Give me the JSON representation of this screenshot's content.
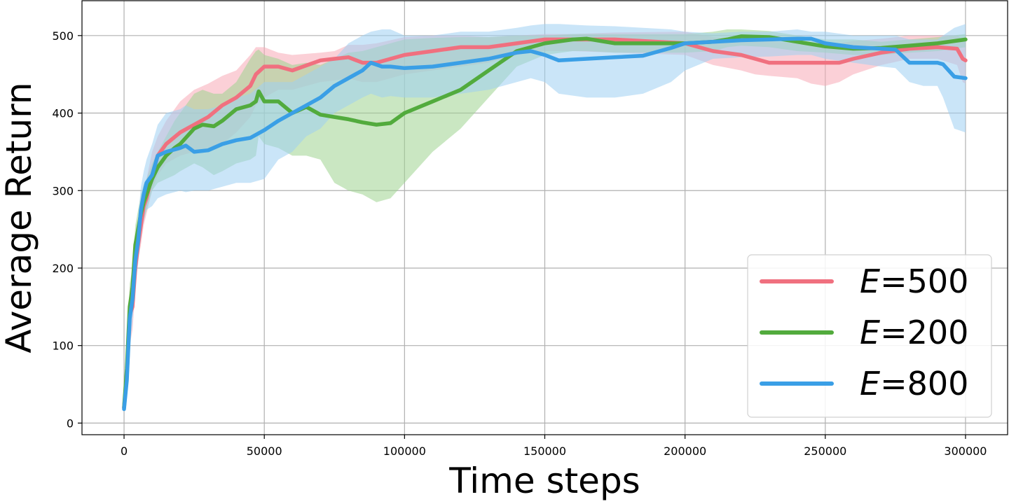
{
  "chart_data": {
    "type": "line",
    "xlabel": "Time steps",
    "ylabel": "Average Return",
    "xlim": [
      -15000,
      315000
    ],
    "ylim": [
      -15,
      545
    ],
    "xticks": [
      0,
      50000,
      100000,
      150000,
      200000,
      250000,
      300000
    ],
    "yticks": [
      0,
      100,
      200,
      300,
      400,
      500
    ],
    "grid": true,
    "legend_position": "lower-right",
    "series": [
      {
        "name_prefix": "E",
        "name_value": "=500",
        "color": "#f0707f",
        "band_color": "#f7a9b6",
        "x": [
          0,
          1000,
          2000,
          3000,
          4000,
          5000,
          6000,
          7000,
          8000,
          10000,
          12000,
          15000,
          20000,
          25000,
          30000,
          35000,
          40000,
          45000,
          47000,
          50000,
          55000,
          60000,
          70000,
          75000,
          80000,
          85000,
          90000,
          100000,
          110000,
          120000,
          130000,
          140000,
          150000,
          160000,
          175000,
          200000,
          210000,
          220000,
          225000,
          230000,
          240000,
          245000,
          250000,
          255000,
          260000,
          270000,
          280000,
          290000,
          297000,
          299000,
          300000
        ],
        "y": [
          20,
          60,
          140,
          150,
          200,
          230,
          255,
          280,
          290,
          320,
          345,
          360,
          375,
          385,
          395,
          410,
          420,
          435,
          450,
          460,
          460,
          455,
          468,
          470,
          472,
          465,
          465,
          475,
          480,
          485,
          485,
          490,
          495,
          495,
          495,
          490,
          480,
          475,
          470,
          465,
          465,
          465,
          465,
          465,
          470,
          478,
          483,
          485,
          483,
          470,
          468
        ],
        "lower": [
          15,
          40,
          100,
          120,
          170,
          210,
          230,
          255,
          270,
          300,
          320,
          335,
          345,
          350,
          355,
          360,
          375,
          395,
          410,
          420,
          430,
          430,
          440,
          442,
          445,
          440,
          440,
          450,
          455,
          460,
          465,
          475,
          480,
          480,
          478,
          475,
          462,
          455,
          450,
          448,
          445,
          438,
          435,
          440,
          450,
          462,
          470,
          470,
          462,
          440,
          438
        ],
        "upper": [
          25,
          80,
          175,
          180,
          230,
          255,
          280,
          300,
          315,
          350,
          370,
          390,
          415,
          430,
          438,
          448,
          455,
          475,
          485,
          485,
          478,
          475,
          478,
          480,
          488,
          488,
          490,
          498,
          500,
          500,
          498,
          500,
          502,
          502,
          504,
          505,
          498,
          495,
          494,
          493,
          490,
          488,
          488,
          490,
          493,
          496,
          500,
          500,
          500,
          495,
          495
        ]
      },
      {
        "name_prefix": "E",
        "name_value": "=200",
        "color": "#52ab3d",
        "band_color": "#9fd38f",
        "x": [
          0,
          1000,
          2000,
          3000,
          4000,
          5000,
          6000,
          7000,
          8000,
          10000,
          12000,
          15000,
          18000,
          20000,
          25000,
          28000,
          32000,
          35000,
          40000,
          45000,
          47000,
          48000,
          50000,
          55000,
          60000,
          65000,
          70000,
          75000,
          80000,
          85000,
          90000,
          95000,
          100000,
          110000,
          120000,
          130000,
          140000,
          150000,
          160000,
          165000,
          175000,
          200000,
          210000,
          215000,
          220000,
          230000,
          240000,
          250000,
          260000,
          270000,
          280000,
          290000,
          300000
        ],
        "y": [
          20,
          70,
          150,
          175,
          230,
          250,
          270,
          285,
          295,
          315,
          330,
          345,
          355,
          360,
          380,
          385,
          383,
          390,
          405,
          410,
          415,
          428,
          415,
          415,
          400,
          408,
          398,
          395,
          392,
          388,
          385,
          387,
          400,
          415,
          430,
          455,
          480,
          490,
          495,
          496,
          490,
          490,
          492,
          495,
          499,
          498,
          492,
          486,
          483,
          484,
          487,
          490,
          495
        ],
        "lower": [
          15,
          50,
          120,
          150,
          200,
          225,
          245,
          262,
          275,
          300,
          310,
          315,
          320,
          325,
          335,
          330,
          320,
          325,
          335,
          340,
          345,
          370,
          360,
          355,
          345,
          345,
          340,
          310,
          300,
          295,
          285,
          290,
          310,
          350,
          380,
          420,
          460,
          475,
          480,
          480,
          478,
          478,
          480,
          485,
          487,
          485,
          480,
          478,
          475,
          475,
          478,
          480,
          485
        ],
        "upper": [
          25,
          90,
          180,
          200,
          255,
          275,
          295,
          308,
          315,
          335,
          350,
          370,
          390,
          400,
          425,
          430,
          425,
          425,
          440,
          470,
          480,
          482,
          475,
          470,
          462,
          465,
          462,
          470,
          478,
          480,
          485,
          490,
          495,
          497,
          498,
          498,
          500,
          500,
          502,
          502,
          502,
          502,
          505,
          508,
          508,
          506,
          500,
          495,
          495,
          492,
          495,
          498,
          502
        ]
      },
      {
        "name_prefix": "E",
        "name_value": "=800",
        "color": "#3a9fe6",
        "band_color": "#9fd0f2",
        "x": [
          0,
          1000,
          2000,
          3000,
          4000,
          5000,
          6000,
          7000,
          8000,
          10000,
          12000,
          15000,
          20000,
          22000,
          25000,
          30000,
          35000,
          40000,
          45000,
          50000,
          55000,
          60000,
          65000,
          70000,
          75000,
          80000,
          85000,
          88000,
          92000,
          95000,
          100000,
          110000,
          120000,
          130000,
          140000,
          145000,
          150000,
          155000,
          165000,
          175000,
          185000,
          195000,
          200000,
          210000,
          220000,
          230000,
          240000,
          245000,
          250000,
          260000,
          270000,
          275000,
          280000,
          285000,
          290000,
          292000,
          294000,
          296000,
          300000
        ],
        "y": [
          18,
          55,
          135,
          160,
          210,
          235,
          275,
          295,
          310,
          320,
          345,
          350,
          355,
          358,
          350,
          352,
          360,
          365,
          368,
          378,
          390,
          400,
          410,
          420,
          435,
          445,
          455,
          465,
          460,
          460,
          458,
          460,
          465,
          470,
          478,
          480,
          475,
          468,
          470,
          472,
          474,
          484,
          490,
          492,
          494,
          495,
          496,
          496,
          490,
          485,
          483,
          482,
          465,
          465,
          465,
          463,
          455,
          447,
          445
        ],
        "lower": [
          14,
          40,
          100,
          130,
          180,
          205,
          240,
          260,
          275,
          280,
          290,
          295,
          300,
          298,
          300,
          300,
          305,
          310,
          310,
          315,
          340,
          350,
          370,
          380,
          400,
          410,
          420,
          425,
          420,
          422,
          420,
          420,
          425,
          430,
          440,
          445,
          440,
          425,
          420,
          420,
          425,
          440,
          455,
          470,
          472,
          473,
          475,
          475,
          470,
          465,
          460,
          458,
          440,
          435,
          435,
          420,
          400,
          380,
          375
        ],
        "upper": [
          22,
          70,
          165,
          190,
          240,
          265,
          305,
          325,
          340,
          360,
          385,
          400,
          405,
          410,
          405,
          405,
          410,
          420,
          425,
          440,
          440,
          440,
          450,
          460,
          470,
          490,
          500,
          505,
          508,
          508,
          500,
          500,
          505,
          505,
          510,
          513,
          515,
          515,
          513,
          512,
          510,
          508,
          505,
          503,
          505,
          505,
          508,
          505,
          505,
          500,
          500,
          500,
          495,
          495,
          495,
          500,
          505,
          510,
          515
        ]
      }
    ]
  }
}
